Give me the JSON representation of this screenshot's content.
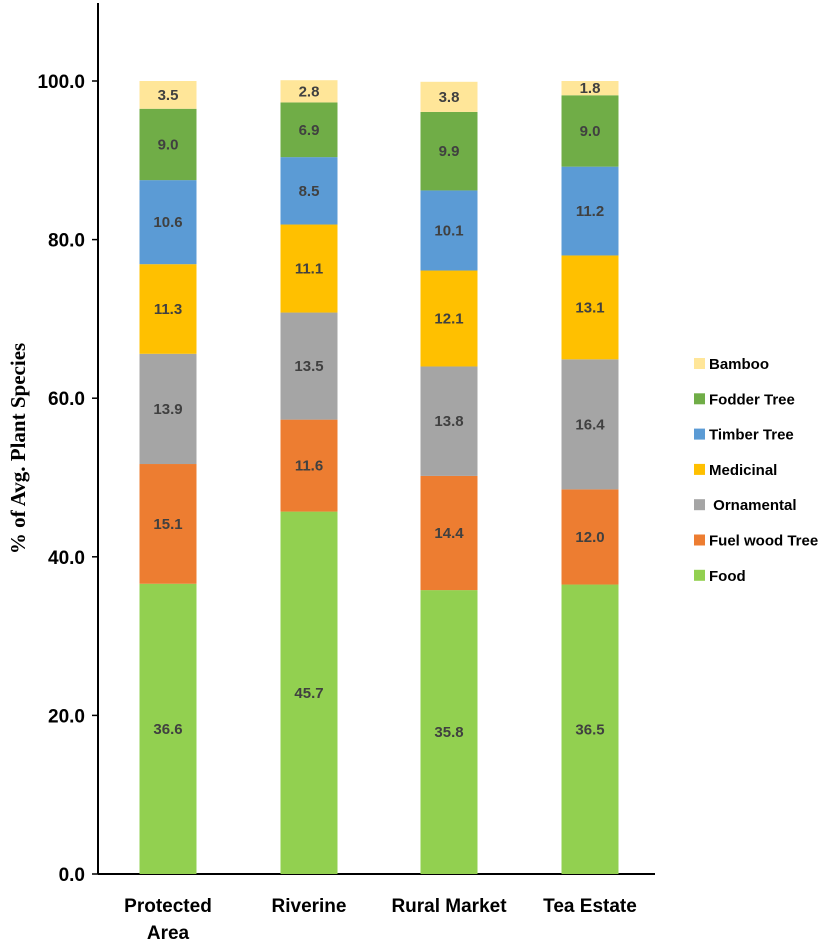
{
  "chart_data": {
    "type": "bar",
    "stacked": true,
    "title": "",
    "xlabel": "",
    "ylabel": "% of Avg. Plant Species",
    "ylim": [
      0,
      110
    ],
    "yticks": [
      "0.0",
      "20.0",
      "40.0",
      "60.0",
      "80.0",
      "100.0"
    ],
    "categories": [
      [
        "Protected",
        "Area"
      ],
      [
        "Riverine"
      ],
      [
        "Rural Market"
      ],
      [
        "Tea Estate"
      ]
    ],
    "series": [
      {
        "name": "Food",
        "color": "#92d050",
        "values": [
          36.6,
          45.7,
          35.8,
          36.5
        ],
        "labels": [
          "36.6",
          "45.7",
          "35.8",
          "36.5"
        ]
      },
      {
        "name": "Fuel wood Tree",
        "color": "#ed7d31",
        "values": [
          15.1,
          11.6,
          14.4,
          12.0
        ],
        "labels": [
          "15.1",
          "11.6",
          "14.4",
          "12.0"
        ]
      },
      {
        "name": " Ornamental",
        "color": "#a5a5a5",
        "values": [
          13.9,
          13.5,
          13.8,
          16.4
        ],
        "labels": [
          "13.9",
          "13.5",
          "13.8",
          "16.4"
        ]
      },
      {
        "name": "Medicinal",
        "color": "#ffc000",
        "values": [
          11.3,
          11.1,
          12.1,
          13.1
        ],
        "labels": [
          "11.3",
          "11.1",
          "12.1",
          "13.1"
        ]
      },
      {
        "name": "Timber Tree",
        "color": "#5b9bd5",
        "values": [
          10.6,
          8.5,
          10.1,
          11.2
        ],
        "labels": [
          "10.6",
          "8.5",
          "10.1",
          "11.2"
        ]
      },
      {
        "name": "Fodder Tree",
        "color": "#70ad47",
        "values": [
          9.0,
          6.9,
          9.9,
          9.0
        ],
        "labels": [
          "9.0",
          "6.9",
          "9.9",
          "9.0"
        ]
      },
      {
        "name": "Bamboo",
        "color": "#ffe699",
        "values": [
          3.5,
          2.8,
          3.8,
          1.8
        ],
        "labels": [
          "3.5",
          "2.8",
          "3.8",
          "1.8"
        ]
      }
    ],
    "legend_position": "right",
    "legend_order": [
      "Bamboo",
      "Fodder Tree",
      "Timber Tree",
      "Medicinal",
      " Ornamental",
      "Fuel wood Tree",
      "Food"
    ]
  }
}
